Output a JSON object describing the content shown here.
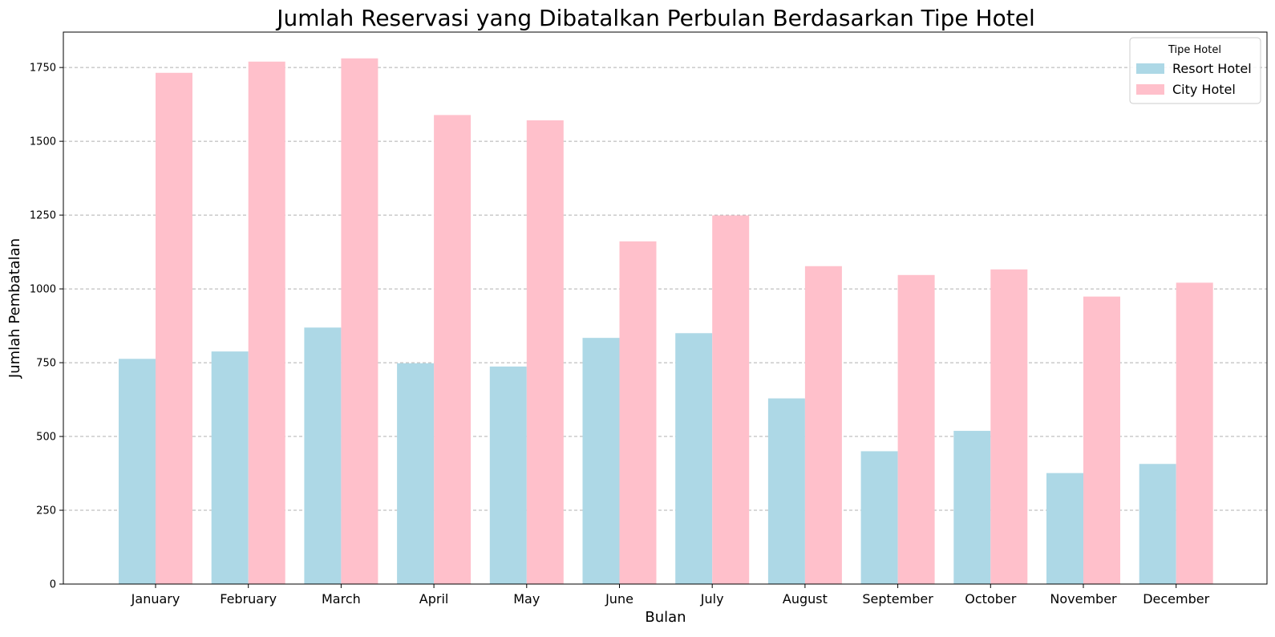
{
  "chart_data": {
    "type": "bar",
    "title": "Jumlah Reservasi yang Dibatalkan Perbulan Berdasarkan Tipe Hotel",
    "xlabel": "Bulan",
    "ylabel": "Jumlah Pembatalan",
    "categories": [
      "January",
      "February",
      "March",
      "April",
      "May",
      "June",
      "July",
      "August",
      "September",
      "October",
      "November",
      "December"
    ],
    "series": [
      {
        "name": "Resort Hotel",
        "color": "#add8e6",
        "values": [
          763,
          788,
          869,
          748,
          737,
          834,
          850,
          629,
          450,
          519,
          376,
          407
        ]
      },
      {
        "name": "City Hotel",
        "color": "#ffc0cb",
        "values": [
          1732,
          1770,
          1781,
          1589,
          1571,
          1161,
          1249,
          1077,
          1047,
          1066,
          974,
          1021
        ]
      }
    ],
    "ylim": [
      0,
      1870
    ],
    "yticks": [
      0,
      250,
      500,
      750,
      1000,
      1250,
      1500,
      1750
    ],
    "grid": "y-dashed",
    "legend": {
      "title": "Tipe Hotel",
      "placement": "top-right"
    }
  }
}
